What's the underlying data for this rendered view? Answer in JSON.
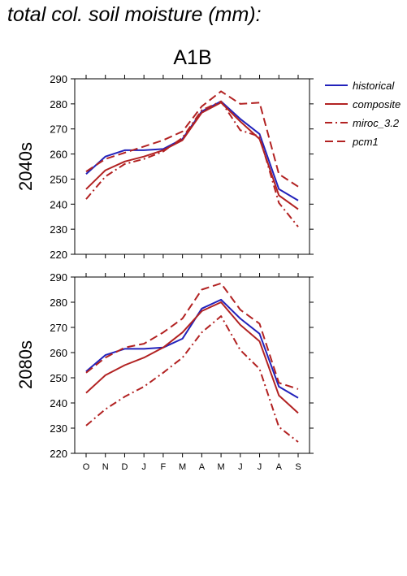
{
  "figure": {
    "title": "total col. soil moisture (mm):",
    "scenario": "A1B"
  },
  "chart_data": [
    {
      "type": "line",
      "title": "A1B",
      "panel_label": "2040s",
      "categories": [
        "O",
        "N",
        "D",
        "J",
        "F",
        "M",
        "A",
        "M",
        "J",
        "J",
        "A",
        "S"
      ],
      "ylim": [
        220,
        290
      ],
      "yticks": [
        220,
        230,
        240,
        250,
        260,
        270,
        280,
        290
      ],
      "series": [
        {
          "name": "historical",
          "color": "#2222bb",
          "dash": "solid",
          "values": [
            252,
            259,
            261.5,
            261.5,
            262,
            266,
            277,
            281,
            274,
            268,
            246,
            241.5
          ]
        },
        {
          "name": "composite",
          "color": "#b22222",
          "dash": "solid",
          "values": [
            246,
            253.5,
            257,
            259,
            261.5,
            265.5,
            276.5,
            280.5,
            273,
            266,
            243.5,
            238
          ]
        },
        {
          "name": "miroc_3.2",
          "color": "#b22222",
          "dash": "dashdot",
          "values": [
            242,
            251,
            256,
            258,
            261,
            266.5,
            277.5,
            281,
            269.5,
            267,
            240.5,
            231
          ]
        },
        {
          "name": "pcm1",
          "color": "#b22222",
          "dash": "dashed",
          "values": [
            253,
            258,
            260.5,
            263,
            265.5,
            269,
            279,
            285,
            280,
            280.5,
            252,
            247
          ]
        }
      ]
    },
    {
      "type": "line",
      "title": "",
      "panel_label": "2080s",
      "categories": [
        "O",
        "N",
        "D",
        "J",
        "F",
        "M",
        "A",
        "M",
        "J",
        "J",
        "A",
        "S"
      ],
      "ylim": [
        220,
        290
      ],
      "yticks": [
        220,
        230,
        240,
        250,
        260,
        270,
        280,
        290
      ],
      "series": [
        {
          "name": "historical",
          "color": "#2222bb",
          "dash": "solid",
          "values": [
            252.5,
            259,
            261.5,
            261.5,
            262,
            265.5,
            277.5,
            281,
            273.5,
            267.5,
            246.5,
            242
          ]
        },
        {
          "name": "composite",
          "color": "#b22222",
          "dash": "solid",
          "values": [
            244,
            251,
            255,
            258,
            262,
            268,
            276.5,
            280,
            271,
            264.5,
            243,
            236
          ]
        },
        {
          "name": "miroc_3.2",
          "color": "#b22222",
          "dash": "dashdot",
          "values": [
            231,
            237.5,
            242.5,
            246.5,
            252,
            258,
            268,
            274.5,
            261,
            253.5,
            230.5,
            224.5
          ]
        },
        {
          "name": "pcm1",
          "color": "#b22222",
          "dash": "dashed",
          "values": [
            252,
            258,
            262,
            263.5,
            268,
            273.5,
            285,
            287.5,
            277,
            271.5,
            248,
            245.5
          ]
        }
      ]
    }
  ],
  "legend": {
    "placement": "right",
    "items": [
      {
        "label": "historical",
        "color": "#2222bb",
        "dash": "solid"
      },
      {
        "label": "composite",
        "color": "#b22222",
        "dash": "solid"
      },
      {
        "label": "miroc_3.2",
        "color": "#b22222",
        "dash": "dashdot"
      },
      {
        "label": "pcm1",
        "color": "#b22222",
        "dash": "dashed"
      }
    ]
  }
}
